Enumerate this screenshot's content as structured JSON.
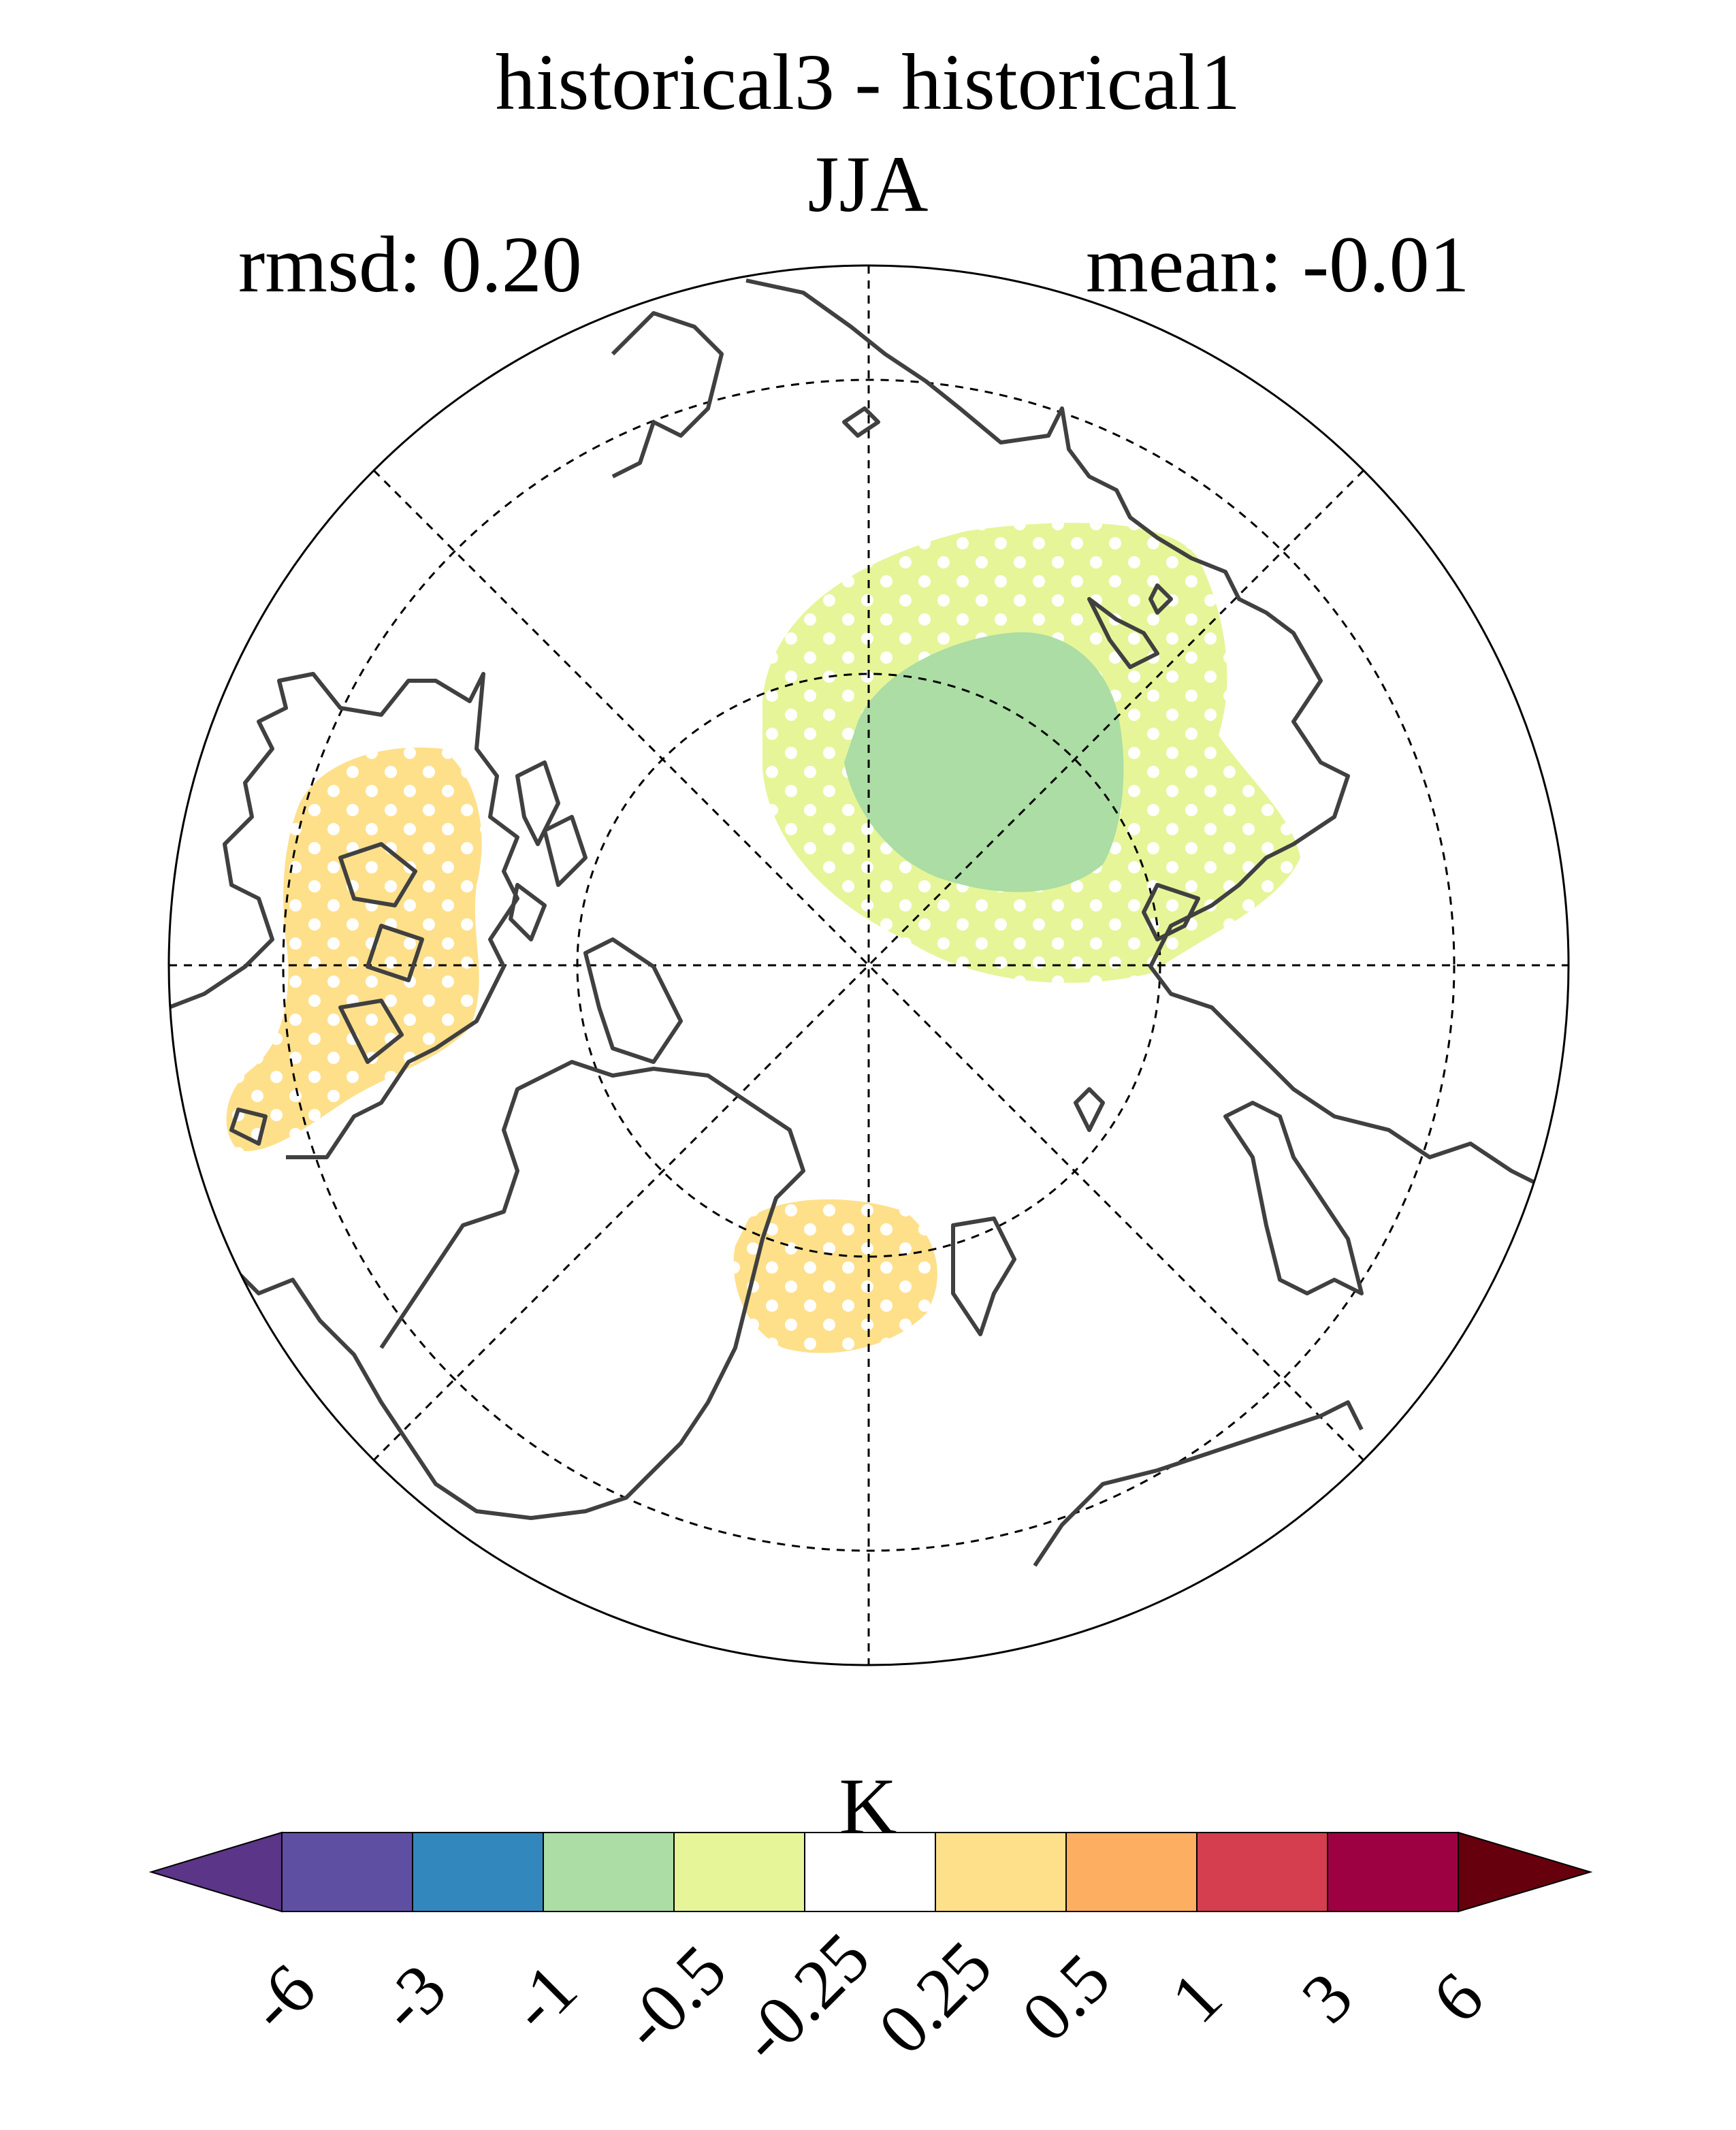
{
  "title": {
    "main": "historical3 - historical1",
    "season": "JJA"
  },
  "stats": {
    "rmsd": "rmsd: 0.20",
    "mean": "mean: -0.01"
  },
  "map": {
    "projection": "north-polar-stereographic",
    "significance_marker": "white stipple dots"
  },
  "colorbar": {
    "units": "K",
    "tick_labels": [
      "-6",
      "-3",
      "-1",
      "-0.5",
      "-0.25",
      "0.25",
      "0.5",
      "1",
      "3",
      "6"
    ],
    "colors": [
      "#5b3588",
      "#5e4fa2",
      "#3288bd",
      "#abdda4",
      "#e6f598",
      "#ffffff",
      "#fee08b",
      "#fdae61",
      "#d53e4f",
      "#9e0142",
      "#67000d"
    ]
  }
}
